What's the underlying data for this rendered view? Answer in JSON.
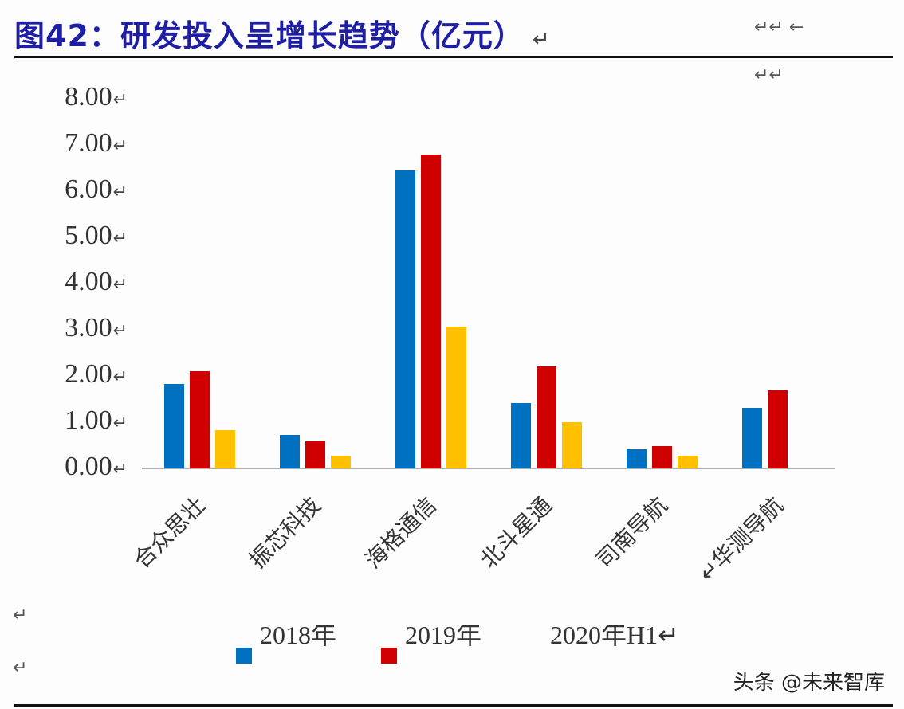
{
  "header": {
    "title": "图42：研发投入呈增长趋势（亿元）",
    "return_mark": "↵",
    "right_marks_row1": "↵↵ ←",
    "right_marks_row2": "↵↵"
  },
  "colors": {
    "title": "#1f1fa6",
    "series_2018": "#0070c0",
    "series_2019": "#d00000",
    "series_2020H1": "#ffc000",
    "axis": "#b0b0b0"
  },
  "axis": {
    "y_ticks": [
      "8.00",
      "7.00",
      "6.00",
      "5.00",
      "4.00",
      "3.00",
      "2.00",
      "1.00",
      "0.00"
    ],
    "x_labels": [
      "合众思壮",
      "振芯科技",
      "海格通信",
      "北斗星通",
      "司南导航",
      "华测导航"
    ],
    "x_label_prefix_last": "↵"
  },
  "legend": {
    "items": [
      {
        "label": "2018年",
        "color": "#0070c0"
      },
      {
        "label": "2019年",
        "color": "#d00000"
      },
      {
        "label": "2020年H1↵",
        "color": "#ffc000"
      }
    ]
  },
  "side_marks": {
    "left_1": "↵",
    "left_2": "↵"
  },
  "watermark": "头条 @未来智库",
  "chart_data": {
    "type": "bar",
    "title": "图42：研发投入呈增长趋势（亿元）",
    "xlabel": "",
    "ylabel": "亿元",
    "ylim": [
      0,
      8
    ],
    "y_ticks": [
      0,
      1,
      2,
      3,
      4,
      5,
      6,
      7,
      8
    ],
    "grid": false,
    "legend_position": "bottom",
    "categories": [
      "合众思壮",
      "振芯科技",
      "海格通信",
      "北斗星通",
      "司南导航",
      "华测导航"
    ],
    "series": [
      {
        "name": "2018年",
        "color": "#0070c0",
        "values": [
          1.83,
          0.73,
          6.45,
          1.41,
          0.41,
          1.31
        ]
      },
      {
        "name": "2019年",
        "color": "#d00000",
        "values": [
          2.1,
          0.59,
          6.79,
          2.21,
          0.48,
          1.69
        ]
      },
      {
        "name": "2020年H1",
        "color": "#ffc000",
        "values": [
          0.83,
          0.28,
          3.07,
          1.0,
          0.28,
          null
        ]
      }
    ]
  }
}
